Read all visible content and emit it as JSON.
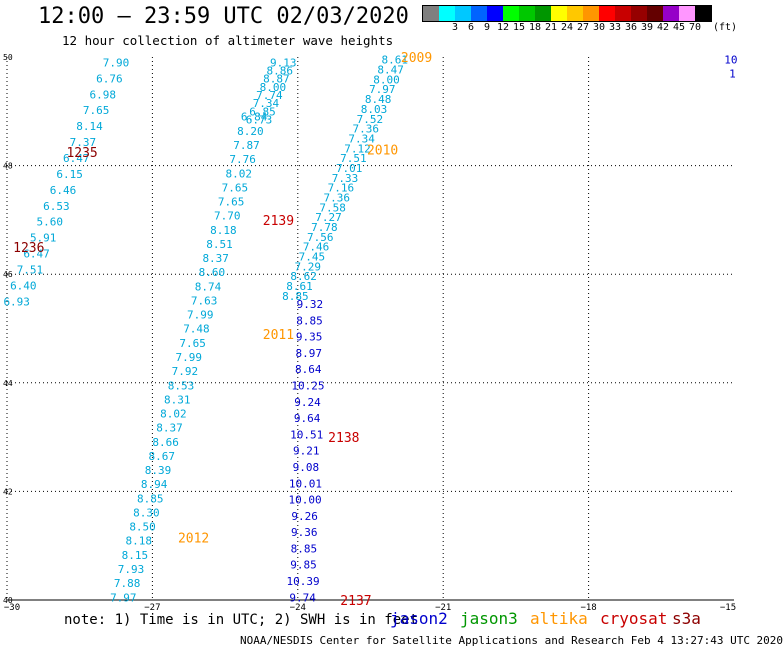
{
  "header": {
    "title": "12:00 — 23:59 UTC 02/03/2020",
    "subtitle": "12 hour collection of altimeter wave heights"
  },
  "legend": {
    "unit": "(ft)",
    "swatches": [
      {
        "label": "",
        "color": "#7f7f7f"
      },
      {
        "label": "3",
        "color": "#00ffff"
      },
      {
        "label": "6",
        "color": "#00c8ff"
      },
      {
        "label": "9",
        "color": "#0064ff"
      },
      {
        "label": "12",
        "color": "#0000ff"
      },
      {
        "label": "15",
        "color": "#00ff00"
      },
      {
        "label": "18",
        "color": "#00c800"
      },
      {
        "label": "21",
        "color": "#009600"
      },
      {
        "label": "24",
        "color": "#ffff00"
      },
      {
        "label": "27",
        "color": "#ffc800"
      },
      {
        "label": "30",
        "color": "#ff9600"
      },
      {
        "label": "33",
        "color": "#ff0000"
      },
      {
        "label": "36",
        "color": "#c80000"
      },
      {
        "label": "39",
        "color": "#960000"
      },
      {
        "label": "42",
        "color": "#640000"
      },
      {
        "label": "45",
        "color": "#9600c8"
      },
      {
        "label": "70",
        "color": "#ff96ff"
      },
      {
        "label": "",
        "color": "#000000"
      }
    ]
  },
  "axes": {
    "lon_ticks": [
      "−30",
      "−27",
      "−24",
      "−21",
      "−18",
      "−15"
    ],
    "lat_ticks": [
      "40",
      "42",
      "44",
      "46",
      "48",
      "50"
    ]
  },
  "colors": {
    "jason2": "#0000cc",
    "jason3": "#009600",
    "altika": "#ff9600",
    "cryosat": "#c80000",
    "s3a": "#8c0000",
    "light": "#00a8d8"
  },
  "tracks": [
    {
      "id": "track-west",
      "color": "#00a8d8",
      "lon0": -27.75,
      "lat0": 49.9,
      "lon1": -29.8,
      "lat1": 45.5,
      "values": [
        "7.90",
        "6.76",
        "6.98",
        "7.65",
        "8.14",
        "7.37",
        "6.47",
        "6.15",
        "6.46",
        "6.53",
        "5.60",
        "5.91",
        "6.47",
        "7.51",
        "6.40",
        "6.93"
      ]
    },
    {
      "id": "track-center-light",
      "color": "#00a8d8",
      "lon0": -24.9,
      "lat0": 48.9,
      "lon1": -27.6,
      "lat1": 40.05,
      "values": [
        "6.84",
        "8.20",
        "7.87",
        "7.76",
        "8.02",
        "7.65",
        "7.65",
        "7.70",
        "8.18",
        "8.51",
        "8.37",
        "8.60",
        "8.74",
        "7.63",
        "7.99",
        "7.48",
        "7.65",
        "7.99",
        "7.92",
        "8.53",
        "8.31",
        "8.02",
        "8.37",
        "8.66",
        "8.67",
        "8.39",
        "8.94",
        "8.85",
        "8.30",
        "8.50",
        "8.18",
        "8.15",
        "7.93",
        "7.88",
        "7.97"
      ]
    },
    {
      "id": "track-top-light",
      "color": "#00a8d8",
      "lon0": -24.3,
      "lat0": 49.9,
      "lon1": -24.8,
      "lat1": 48.85,
      "values": [
        "9.13",
        "8.86",
        "8.87",
        "8.00",
        "7.74",
        "7.34",
        "6.85",
        "6.73"
      ]
    },
    {
      "id": "track-ne-light",
      "color": "#00a8d8",
      "lon0": -22.0,
      "lat0": 49.95,
      "lon1": -24.05,
      "lat1": 45.6,
      "values": [
        "8.61",
        "8.47",
        "8.00",
        "7.97",
        "8.48",
        "8.03",
        "7.52",
        "7.36",
        "7.34",
        "7.12",
        "7.51",
        "7.01",
        "7.33",
        "7.16",
        "7.36",
        "7.58",
        "7.27",
        "7.78",
        "7.56",
        "7.46",
        "7.45",
        "7.29",
        "8.62",
        "8.61",
        "8.85"
      ]
    },
    {
      "id": "track-blue",
      "color": "#0000cc",
      "lon0": -23.75,
      "lat0": 45.45,
      "lon1": -23.9,
      "lat1": 40.05,
      "values": [
        "9.32",
        "8.85",
        "9.35",
        "8.97",
        "8.64",
        "10.25",
        "9.24",
        "9.64",
        "10.51",
        "9.21",
        "9.08",
        "10.01",
        "10.00",
        "9.26",
        "9.36",
        "8.85",
        "9.85",
        "10.39",
        "9.74"
      ]
    }
  ],
  "tags": [
    {
      "text": "2009",
      "color": "#ff9600",
      "lon": -21.55,
      "lat": 50.0
    },
    {
      "text": "2010",
      "color": "#ff9600",
      "lon": -22.25,
      "lat": 48.3
    },
    {
      "text": "1235",
      "color": "#8c0000",
      "lon": -28.45,
      "lat": 48.25
    },
    {
      "text": "1236",
      "color": "#8c0000",
      "lon": -29.55,
      "lat": 46.5
    },
    {
      "text": "2139",
      "color": "#c80000",
      "lon": -24.4,
      "lat": 47.0
    },
    {
      "text": "2011",
      "color": "#ff9600",
      "lon": -24.4,
      "lat": 44.9
    },
    {
      "text": "2138",
      "color": "#c80000",
      "lon": -23.05,
      "lat": 43.0
    },
    {
      "text": "2012",
      "color": "#ff9600",
      "lon": -26.15,
      "lat": 41.15
    },
    {
      "text": "2137",
      "color": "#c80000",
      "lon": -22.8,
      "lat": 40.0
    }
  ],
  "edge_values": [
    {
      "text": "10",
      "color": "#0000cc",
      "lon": -15.2,
      "lat": 49.95
    },
    {
      "text": "1",
      "color": "#0000cc",
      "lon": -15.1,
      "lat": 49.7
    }
  ],
  "footer": {
    "note": "note: 1) Time is in UTC; 2) SWH is in feet",
    "sat_jason2": "jason2",
    "sat_jason3": "jason3",
    "sat_altika": "altika",
    "sat_cryosat": "cryosat",
    "sat_s3a": "s3a",
    "credit": "NOAA/NESDIS Center for Satellite Applications and Research   Feb  4 13:27:43 UTC 2020"
  }
}
